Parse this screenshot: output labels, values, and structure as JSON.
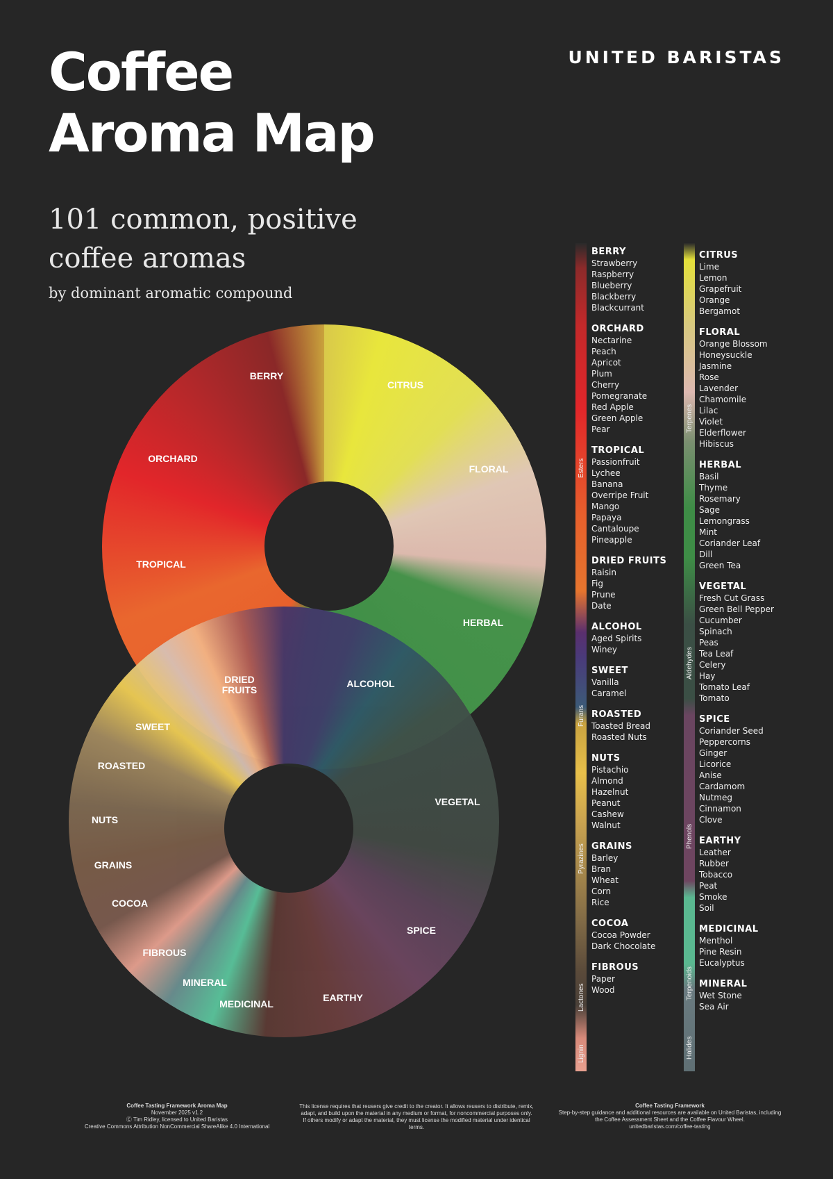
{
  "title": {
    "line1": "Coffee",
    "line2": "Aroma Map"
  },
  "brand": "UNITED BARISTAS",
  "subtitle": {
    "line1": "101 common, positive",
    "line2": "coffee aromas",
    "line3": "by dominant aromatic compound"
  },
  "wheel_labels": {
    "berry": "BERRY",
    "citrus": "CITRUS",
    "orchard": "ORCHARD",
    "floral": "FLORAL",
    "tropical": "TROPICAL",
    "herbal": "HERBAL",
    "dried_fruits": "DRIED FRUITS",
    "alcohol": "ALCOHOL",
    "sweet": "SWEET",
    "roasted": "ROASTED",
    "vegetal": "VEGETAL",
    "nuts": "NUTS",
    "grains": "GRAINS",
    "cocoa": "COCOA",
    "spice": "SPICE",
    "fibrous": "FIBROUS",
    "mineral": "MINERAL",
    "medicinal": "MEDICINAL",
    "earthy": "EARTHY"
  },
  "compounds": {
    "esters": "Esters",
    "furans": "Furans",
    "pyrazines": "Pyrazines",
    "lactones": "Lactones",
    "lignin": "Lignin",
    "terpenes": "Terpenes",
    "aldehydes": "Aldehydes",
    "phenols": "Phenols",
    "terpenoids": "Terpenoids",
    "halides": "Halides"
  },
  "left_groups": [
    {
      "name": "BERRY",
      "items": [
        "Strawberry",
        "Raspberry",
        "Blueberry",
        "Blackberry",
        "Blackcurrant"
      ]
    },
    {
      "name": "ORCHARD",
      "items": [
        "Nectarine",
        "Peach",
        "Apricot",
        "Plum",
        "Cherry",
        "Pomegranate",
        "Red Apple",
        "Green Apple",
        "Pear"
      ]
    },
    {
      "name": "TROPICAL",
      "items": [
        "Passionfruit",
        "Lychee",
        "Banana",
        "Overripe Fruit",
        "Mango",
        "Papaya",
        "Cantaloupe",
        "Pineapple"
      ]
    },
    {
      "name": "DRIED FRUITS",
      "items": [
        "Raisin",
        "Fig",
        "Prune",
        "Date"
      ]
    },
    {
      "name": "ALCOHOL",
      "items": [
        "Aged Spirits",
        "Winey"
      ]
    },
    {
      "name": "SWEET",
      "items": [
        "Vanilla",
        "Caramel"
      ]
    },
    {
      "name": "ROASTED",
      "items": [
        "Toasted Bread",
        "Roasted Nuts"
      ]
    },
    {
      "name": "NUTS",
      "items": [
        "Pistachio",
        "Almond",
        "Hazelnut",
        "Peanut",
        "Cashew",
        "Walnut"
      ]
    },
    {
      "name": "GRAINS",
      "items": [
        "Barley",
        "Bran",
        "Wheat",
        "Corn",
        "Rice"
      ]
    },
    {
      "name": "COCOA",
      "items": [
        "Cocoa Powder",
        "Dark Chocolate"
      ]
    },
    {
      "name": "FIBROUS",
      "items": [
        "Paper",
        "Wood"
      ]
    }
  ],
  "right_groups": [
    {
      "name": "CITRUS",
      "items": [
        "Lime",
        "Lemon",
        "Grapefruit",
        "Orange",
        "Bergamot"
      ]
    },
    {
      "name": "FLORAL",
      "items": [
        "Orange Blossom",
        "Honeysuckle",
        "Jasmine",
        "Rose",
        "Lavender",
        "Chamomile",
        "Lilac",
        "Violet",
        "Elderflower",
        "Hibiscus"
      ]
    },
    {
      "name": "HERBAL",
      "items": [
        "Basil",
        "Thyme",
        "Rosemary",
        "Sage",
        "Lemongrass",
        "Mint",
        "Coriander Leaf",
        "Dill",
        "Green Tea"
      ]
    },
    {
      "name": "VEGETAL",
      "items": [
        "Fresh Cut Grass",
        "Green Bell Pepper",
        "Cucumber",
        "Spinach",
        "Peas",
        "Tea Leaf",
        "Celery",
        "Hay",
        "Tomato Leaf",
        "Tomato"
      ]
    },
    {
      "name": "SPICE",
      "items": [
        "Coriander Seed",
        "Peppercorns",
        "Ginger",
        "Licorice",
        "Anise",
        "Cardamom",
        "Nutmeg",
        "Cinnamon",
        "Clove"
      ]
    },
    {
      "name": "EARTHY",
      "items": [
        "Leather",
        "Rubber",
        "Tobacco",
        "Peat",
        "Smoke",
        "Soil"
      ]
    },
    {
      "name": "MEDICINAL",
      "items": [
        "Menthol",
        "Pine Resin",
        "Eucalyptus"
      ]
    },
    {
      "name": "MINERAL",
      "items": [
        "Wet Stone",
        "Sea Air"
      ]
    }
  ],
  "footer": {
    "left": {
      "title": "Coffee Tasting Framework Aroma Map",
      "l1": "November 2025 v1.2",
      "l2": "Ⓒ Tim Ridley, licensed to United Baristas",
      "l3": "Creative Commons Attribution NonCommercial ShareAlike 4.0 International"
    },
    "middle": "This license requires that reusers give credit to the creator. It allows reusers to distribute, remix, adapt, and build upon the material in any medium or format, for noncommercial purposes only. If others modify or adapt the material, they must license the modified material under identical terms.",
    "right": {
      "title": "Coffee Tasting Framework",
      "l1": "Step-by-step guidance and additional resources are available on United Baristas, including the Coffee Assessment Sheet and the Coffee Flavour Wheel.",
      "l2": "unitedbaristas.com/coffee-tasting"
    }
  }
}
